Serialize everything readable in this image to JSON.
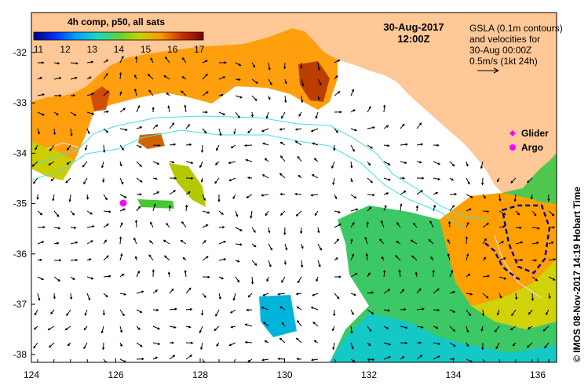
{
  "map": {
    "colorbar": {
      "title": "4h comp, p50, all sats",
      "ticks": [
        "11",
        "12",
        "13",
        "14",
        "15",
        "16",
        "17"
      ],
      "colors": [
        "#00007f",
        "#0033ff",
        "#00a0ff",
        "#19d7c8",
        "#5fd23c",
        "#c8d200",
        "#ff9600",
        "#c83200",
        "#7f0000"
      ]
    },
    "date_line1": "30-Aug-2017",
    "date_line2": "12:00Z",
    "gsla_note": {
      "line1": "GSLA (0.1m contours)",
      "line2": "and velocities for",
      "line3": "30-Aug 00:00Z",
      "line4": "0.5m/s (1kt 24h)"
    },
    "legend": {
      "glider": "Glider",
      "argo": "Argo",
      "glider_color": "#ff00ff",
      "argo_color": "#ff00ff"
    },
    "credit": "© IMOS 08-Nov-2017 14:19 Hobart Time",
    "y_ticks": [
      "-32",
      "-33",
      "-34",
      "-35",
      "-36",
      "-37",
      "-38"
    ],
    "x_ticks": [
      "124",
      "126",
      "128",
      "130",
      "132",
      "134",
      "136"
    ],
    "colors": {
      "land": "#ffc896",
      "ocean_nodata": "#ffffff",
      "contour": "#40e0e8",
      "negative_contour": "#0000aa"
    }
  }
}
